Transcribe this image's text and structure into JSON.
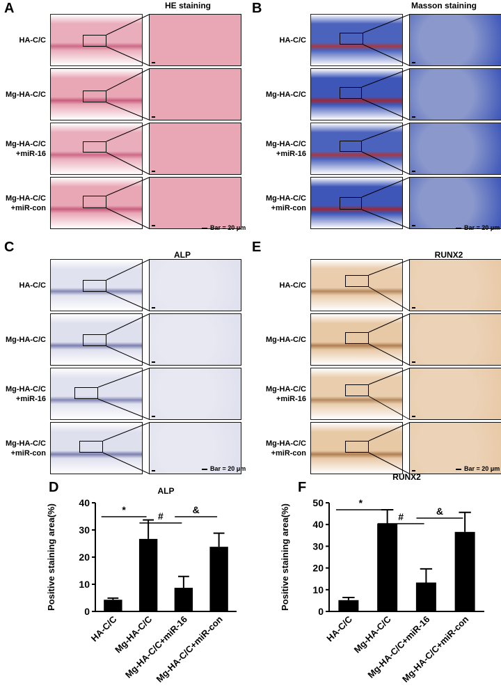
{
  "panel_a": {
    "letter": "A",
    "title": "HE staining"
  },
  "panel_b": {
    "letter": "B",
    "title": "Masson staining"
  },
  "panel_c": {
    "letter": "C",
    "title": "ALP"
  },
  "panel_e": {
    "letter": "E",
    "title": "RUNX2"
  },
  "panel_d": {
    "letter": "D"
  },
  "panel_f": {
    "letter": "F"
  },
  "groups": [
    "HA-C/C",
    "Mg-HA-C/C",
    "Mg-HA-C/C\n+miR-16",
    "Mg-HA-C/C\n+miR-con"
  ],
  "scale_bar": "Bar = 20 μm",
  "colors": {
    "he": "#e9a7b6",
    "he_dark": "#c85d7e",
    "masson": "#3d56b8",
    "masson_light": "#8a98cc",
    "alp": "#dfe0ee",
    "runx2": "#e8c9a6",
    "bar": "#000000"
  },
  "chart_data": [
    {
      "type": "bar",
      "title": "ALP",
      "ylabel": "Positive staining area(%)",
      "categories": [
        "HA-C/C",
        "Mg-HA-C/C",
        "Mg-HA-C/C+miR-16",
        "Mg-HA-C/C+miR-con"
      ],
      "values": [
        4.3,
        26.7,
        8.7,
        23.8
      ],
      "errors": [
        0.6,
        7.0,
        4.2,
        5.0
      ],
      "ylim": [
        0,
        40
      ],
      "yticks": [
        0,
        10,
        20,
        30,
        40
      ],
      "significance": [
        {
          "from": 0,
          "to": 1,
          "label": "*"
        },
        {
          "from": 1,
          "to": 2,
          "label": "#"
        },
        {
          "from": 2,
          "to": 3,
          "label": "&"
        }
      ]
    },
    {
      "type": "bar",
      "title": "RUNX2",
      "ylabel": "Positive staining area(%)",
      "categories": [
        "HA-C/C",
        "Mg-HA-C/C",
        "Mg-HA-C/C+miR-16",
        "Mg-HA-C/C+miR-con"
      ],
      "values": [
        5.2,
        40.3,
        13.3,
        36.6
      ],
      "errors": [
        1.2,
        6.5,
        6.3,
        9.0
      ],
      "ylim": [
        0,
        50
      ],
      "yticks": [
        0,
        10,
        20,
        30,
        40,
        50
      ],
      "significance": [
        {
          "from": 0,
          "to": 1,
          "label": "*"
        },
        {
          "from": 1,
          "to": 2,
          "label": "#"
        },
        {
          "from": 2,
          "to": 3,
          "label": "&"
        }
      ]
    }
  ]
}
